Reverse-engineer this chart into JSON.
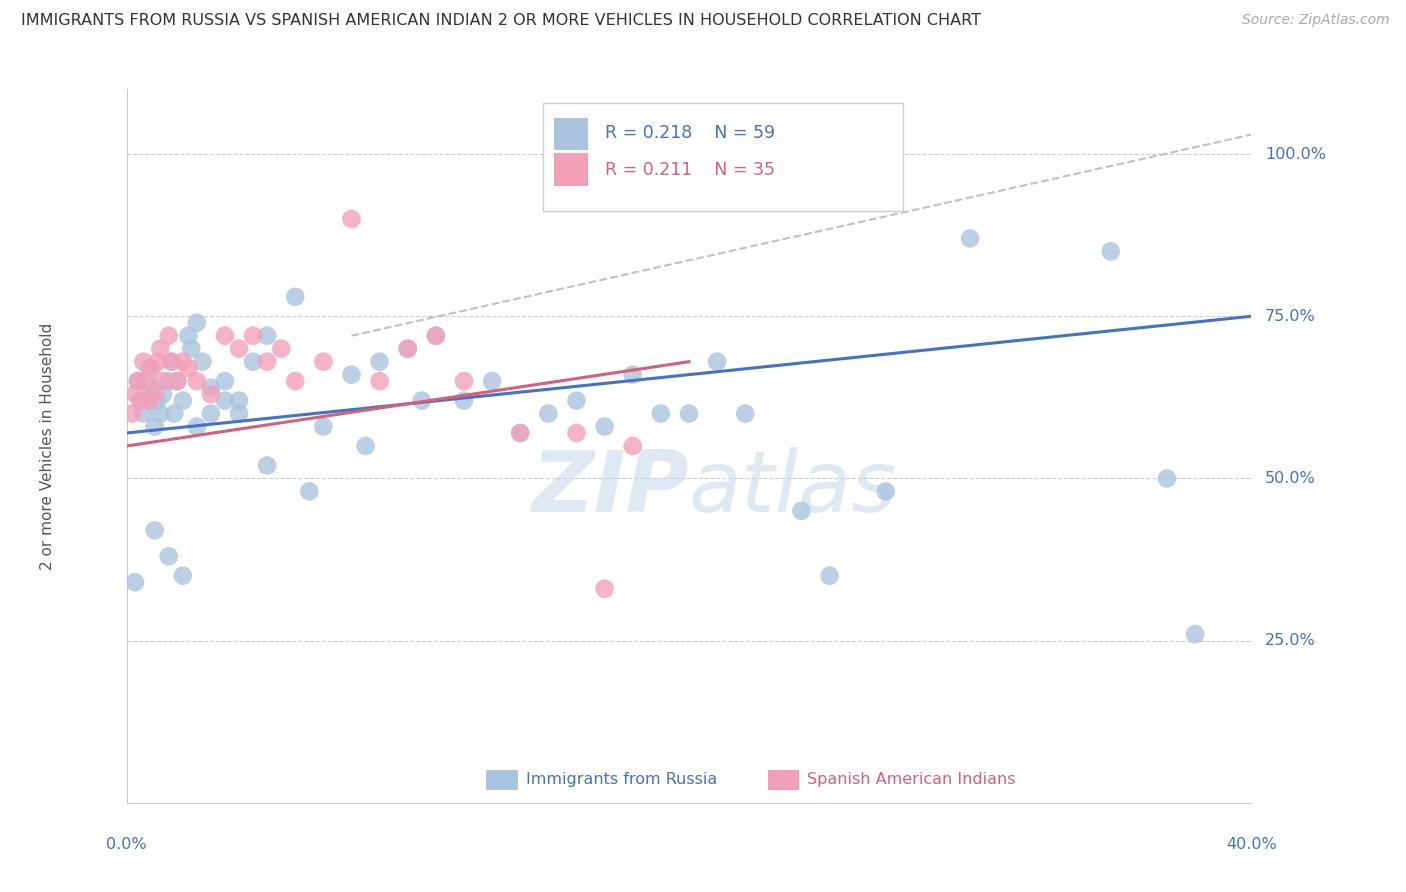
{
  "title": "IMMIGRANTS FROM RUSSIA VS SPANISH AMERICAN INDIAN 2 OR MORE VEHICLES IN HOUSEHOLD CORRELATION CHART",
  "source": "Source: ZipAtlas.com",
  "ylabel": "2 or more Vehicles in Household",
  "blue_R": 0.218,
  "blue_N": 59,
  "pink_R": 0.211,
  "pink_N": 35,
  "blue_color": "#aac4df",
  "blue_line_color": "#4472c4",
  "pink_color": "#f2a0b8",
  "pink_line_color": "#d4607a",
  "legend1": "Immigrants from Russia",
  "legend2": "Spanish American Indians",
  "xmin": 0.0,
  "xmax": 40.0,
  "ymin": 0.0,
  "ymax": 110.0,
  "ytick_values": [
    25,
    50,
    75,
    100
  ],
  "ytick_labels": [
    "25.0%",
    "50.0%",
    "75.0%",
    "100.0%"
  ],
  "grid_color": "#cccccc",
  "axis_label_color": "#4472c4",
  "title_color": "#333333",
  "source_color": "#aaaaaa",
  "blue_line_x": [
    0,
    40
  ],
  "blue_line_y": [
    57,
    75
  ],
  "pink_line_x": [
    0,
    20
  ],
  "pink_line_y": [
    55,
    68
  ],
  "dash_line_x": [
    8,
    40
  ],
  "dash_line_y": [
    72,
    103
  ],
  "blue_x": [
    0.3,
    0.4,
    0.5,
    0.6,
    0.8,
    0.9,
    1.0,
    1.1,
    1.2,
    1.3,
    1.5,
    1.6,
    1.7,
    1.8,
    2.0,
    2.2,
    2.3,
    2.5,
    2.7,
    3.0,
    3.5,
    4.0,
    4.5,
    5.0,
    6.0,
    7.0,
    8.0,
    9.0,
    10.0,
    11.0,
    12.0,
    13.0,
    14.0,
    15.0,
    16.0,
    17.0,
    18.0,
    19.0,
    20.0,
    21.0,
    22.0,
    24.0,
    25.0,
    27.0,
    30.0,
    35.0,
    37.0,
    38.0,
    1.0,
    1.5,
    2.0,
    2.5,
    3.0,
    3.5,
    4.0,
    5.0,
    6.5,
    8.5,
    10.5
  ],
  "blue_y": [
    34,
    65,
    62,
    60,
    67,
    64,
    58,
    62,
    60,
    63,
    65,
    68,
    60,
    65,
    62,
    72,
    70,
    74,
    68,
    64,
    62,
    60,
    68,
    72,
    78,
    58,
    66,
    68,
    70,
    72,
    62,
    65,
    57,
    60,
    62,
    58,
    66,
    60,
    60,
    68,
    60,
    45,
    35,
    48,
    87,
    85,
    50,
    26,
    42,
    38,
    35,
    58,
    60,
    65,
    62,
    52,
    48,
    55,
    62
  ],
  "pink_x": [
    0.2,
    0.3,
    0.4,
    0.5,
    0.6,
    0.7,
    0.8,
    0.9,
    1.0,
    1.1,
    1.2,
    1.3,
    1.5,
    1.6,
    1.8,
    2.0,
    2.2,
    2.5,
    3.0,
    3.5,
    4.0,
    4.5,
    5.0,
    5.5,
    6.0,
    7.0,
    8.0,
    9.0,
    10.0,
    11.0,
    12.0,
    14.0,
    16.0,
    17.0,
    18.0
  ],
  "pink_y": [
    60,
    63,
    65,
    62,
    68,
    65,
    62,
    67,
    63,
    68,
    70,
    65,
    72,
    68,
    65,
    68,
    67,
    65,
    63,
    72,
    70,
    72,
    68,
    70,
    65,
    68,
    90,
    65,
    70,
    72,
    65,
    57,
    57,
    33,
    55
  ]
}
